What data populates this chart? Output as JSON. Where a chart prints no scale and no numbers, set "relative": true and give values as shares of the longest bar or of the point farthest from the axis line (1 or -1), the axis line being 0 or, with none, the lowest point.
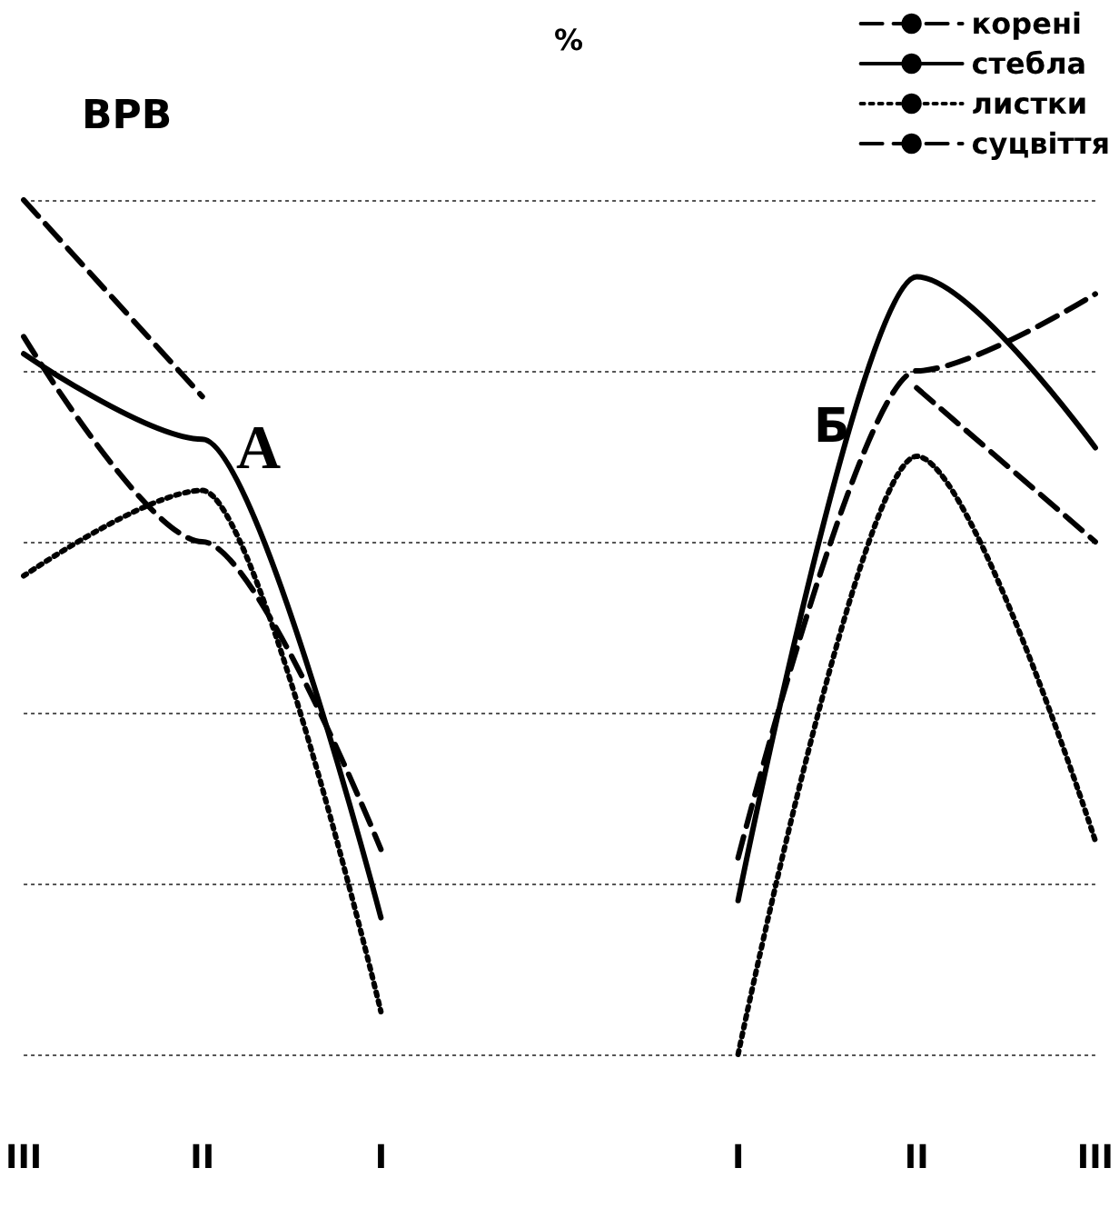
{
  "chart_data": {
    "type": "line",
    "title": "ВРВ",
    "ylabel": "%",
    "relative": true,
    "grid": "y",
    "legend": "top right",
    "marker": "none",
    "categories": [
      "III",
      "II",
      "I",
      null,
      "I",
      "II",
      "III"
    ],
    "series": [
      {
        "name": "корені",
        "color": "#000000",
        "line_style": "dashed",
        "values": [
          0.84,
          0.6,
          0.24,
          null,
          0.23,
          0.8,
          0.89
        ]
      },
      {
        "name": "стебла",
        "color": "#000000",
        "line_style": "solid",
        "values": [
          0.82,
          0.72,
          0.16,
          null,
          0.18,
          0.91,
          0.71
        ]
      },
      {
        "name": "листки",
        "color": "#000000",
        "line_style": "dotted",
        "values": [
          0.56,
          0.66,
          0.05,
          null,
          0,
          0.7,
          0.25
        ]
      },
      {
        "name": "суцвіття",
        "color": "#000000",
        "line_style": "dashed",
        "values": [
          1,
          0.77,
          null,
          null,
          null,
          0.78,
          0.6
        ]
      }
    ],
    "annotations": [
      "А",
      "Б"
    ]
  }
}
